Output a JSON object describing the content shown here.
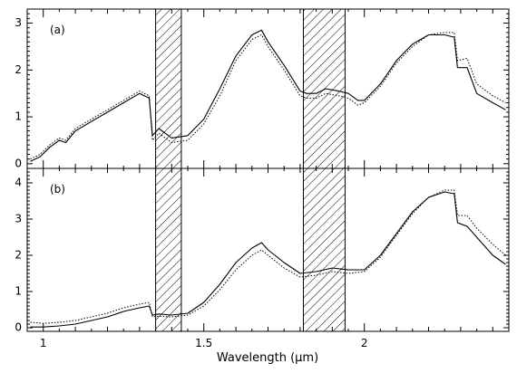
{
  "chart_data": [
    {
      "type": "line",
      "panel_label": "(a)",
      "xlim": [
        0.95,
        2.45
      ],
      "ylim": [
        -0.1,
        3.3
      ],
      "y_ticks": [
        0,
        1,
        2,
        3
      ],
      "y_tick_labels": [
        "0",
        "1",
        "2",
        "3"
      ],
      "excluded_bands": [
        [
          1.35,
          1.43
        ],
        [
          1.81,
          1.94
        ]
      ],
      "series": [
        {
          "style": "solid",
          "x": [
            0.96,
            0.99,
            1.02,
            1.05,
            1.07,
            1.1,
            1.15,
            1.2,
            1.25,
            1.3,
            1.33,
            1.34,
            1.36,
            1.4,
            1.45,
            1.5,
            1.55,
            1.6,
            1.65,
            1.68,
            1.7,
            1.75,
            1.8,
            1.82,
            1.85,
            1.88,
            1.92,
            1.95,
            1.98,
            2.0,
            2.05,
            2.1,
            2.15,
            2.2,
            2.25,
            2.28,
            2.29,
            2.32,
            2.35,
            2.4,
            2.44
          ],
          "y": [
            0.05,
            0.15,
            0.35,
            0.5,
            0.45,
            0.7,
            0.9,
            1.1,
            1.3,
            1.5,
            1.4,
            0.6,
            0.75,
            0.55,
            0.6,
            0.95,
            1.6,
            2.3,
            2.75,
            2.85,
            2.6,
            2.1,
            1.55,
            1.5,
            1.5,
            1.6,
            1.55,
            1.5,
            1.35,
            1.35,
            1.7,
            2.2,
            2.55,
            2.75,
            2.75,
            2.7,
            2.05,
            2.05,
            1.5,
            1.3,
            1.15
          ]
        },
        {
          "style": "dotted",
          "x": [
            0.96,
            0.99,
            1.02,
            1.05,
            1.07,
            1.1,
            1.15,
            1.2,
            1.25,
            1.3,
            1.33,
            1.34,
            1.36,
            1.4,
            1.45,
            1.5,
            1.55,
            1.6,
            1.65,
            1.68,
            1.7,
            1.75,
            1.8,
            1.82,
            1.85,
            1.88,
            1.92,
            1.95,
            1.98,
            2.0,
            2.05,
            2.1,
            2.15,
            2.2,
            2.25,
            2.28,
            2.29,
            2.32,
            2.35,
            2.4,
            2.44
          ],
          "y": [
            0.1,
            0.2,
            0.4,
            0.55,
            0.5,
            0.75,
            0.95,
            1.15,
            1.35,
            1.55,
            1.45,
            0.5,
            0.65,
            0.45,
            0.5,
            0.85,
            1.45,
            2.2,
            2.65,
            2.75,
            2.5,
            2.0,
            1.45,
            1.4,
            1.4,
            1.5,
            1.45,
            1.4,
            1.25,
            1.3,
            1.65,
            2.15,
            2.5,
            2.75,
            2.8,
            2.8,
            2.2,
            2.25,
            1.7,
            1.45,
            1.3
          ]
        }
      ]
    },
    {
      "type": "line",
      "panel_label": "(b)",
      "xlim": [
        0.95,
        2.45
      ],
      "ylim": [
        -0.1,
        4.4
      ],
      "y_ticks": [
        0,
        1,
        2,
        3,
        4
      ],
      "y_tick_labels": [
        "0",
        "1",
        "2",
        "3",
        "4"
      ],
      "x_ticks": [
        1,
        1.5,
        2
      ],
      "x_tick_labels": [
        "1",
        "1.5",
        "2"
      ],
      "xlabel": "Wavelength (μm)",
      "excluded_bands": [
        [
          1.35,
          1.43
        ],
        [
          1.81,
          1.94
        ]
      ],
      "series": [
        {
          "style": "solid",
          "x": [
            0.96,
            1.0,
            1.05,
            1.1,
            1.15,
            1.2,
            1.25,
            1.3,
            1.33,
            1.34,
            1.36,
            1.4,
            1.45,
            1.5,
            1.55,
            1.6,
            1.65,
            1.68,
            1.7,
            1.75,
            1.8,
            1.85,
            1.9,
            1.95,
            2.0,
            2.05,
            2.1,
            2.15,
            2.2,
            2.25,
            2.28,
            2.29,
            2.32,
            2.35,
            2.4,
            2.44
          ],
          "y": [
            0.02,
            0.02,
            0.05,
            0.1,
            0.2,
            0.3,
            0.45,
            0.55,
            0.6,
            0.35,
            0.38,
            0.35,
            0.4,
            0.7,
            1.2,
            1.8,
            2.2,
            2.35,
            2.15,
            1.8,
            1.5,
            1.55,
            1.65,
            1.6,
            1.6,
            2.0,
            2.6,
            3.2,
            3.6,
            3.75,
            3.7,
            2.9,
            2.8,
            2.5,
            2.0,
            1.75
          ]
        },
        {
          "style": "dotted",
          "x": [
            0.96,
            1.0,
            1.05,
            1.1,
            1.15,
            1.2,
            1.25,
            1.3,
            1.33,
            1.34,
            1.36,
            1.4,
            1.45,
            1.5,
            1.55,
            1.6,
            1.65,
            1.68,
            1.7,
            1.75,
            1.8,
            1.85,
            1.9,
            1.95,
            2.0,
            2.05,
            2.1,
            2.15,
            2.2,
            2.25,
            2.28,
            2.29,
            2.32,
            2.35,
            2.4,
            2.44
          ],
          "y": [
            0.15,
            0.12,
            0.15,
            0.2,
            0.3,
            0.4,
            0.55,
            0.65,
            0.7,
            0.3,
            0.32,
            0.3,
            0.35,
            0.6,
            1.05,
            1.6,
            2.0,
            2.15,
            2.0,
            1.65,
            1.4,
            1.45,
            1.55,
            1.5,
            1.55,
            1.95,
            2.55,
            3.15,
            3.6,
            3.8,
            3.8,
            3.1,
            3.1,
            2.75,
            2.3,
            2.0
          ]
        }
      ]
    }
  ]
}
